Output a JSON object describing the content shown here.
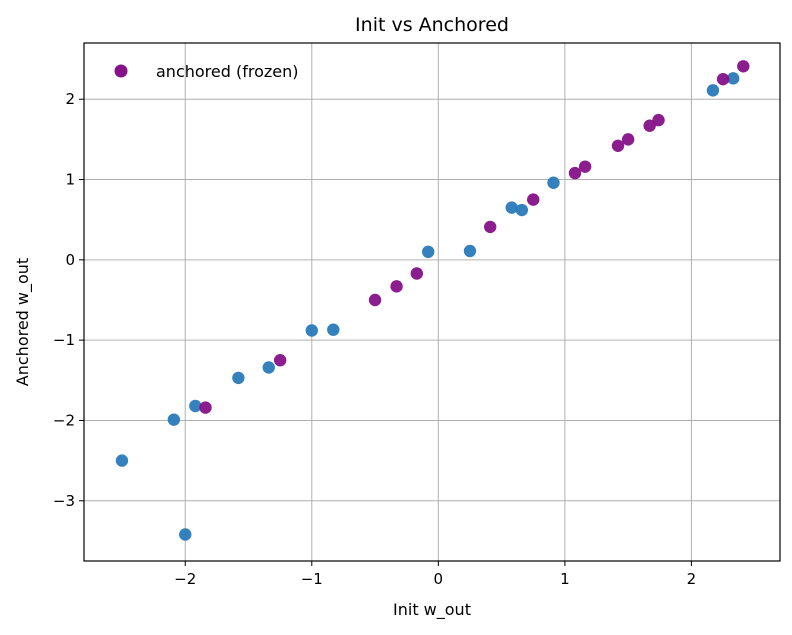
{
  "chart_data": {
    "type": "scatter",
    "title": "Init vs Anchored",
    "xlabel": "Init w_out",
    "ylabel": "Anchored w_out",
    "xlim": [
      -2.8,
      2.7
    ],
    "ylim": [
      -3.75,
      2.7
    ],
    "xticks": [
      -2,
      -1,
      0,
      1,
      2
    ],
    "yticks": [
      -3,
      -2,
      -1,
      0,
      1,
      2
    ],
    "xtick_labels": [
      "−2",
      "−1",
      "0",
      "1",
      "2"
    ],
    "ytick_labels": [
      "−3",
      "−2",
      "−1",
      "0",
      "1",
      "2"
    ],
    "grid": true,
    "legend": {
      "placement": "top-left",
      "entries": [
        "anchored (frozen)"
      ]
    },
    "series": [
      {
        "color": "#2a7ab9",
        "points": [
          [
            -2.5,
            -2.5
          ],
          [
            -2.09,
            -1.99
          ],
          [
            -2.0,
            -3.42
          ],
          [
            -1.92,
            -1.82
          ],
          [
            -1.58,
            -1.47
          ],
          [
            -1.34,
            -1.34
          ],
          [
            -1.0,
            -0.88
          ],
          [
            -0.83,
            -0.87
          ],
          [
            -0.08,
            0.1
          ],
          [
            0.25,
            0.11
          ],
          [
            0.58,
            0.65
          ],
          [
            0.66,
            0.62
          ],
          [
            0.91,
            0.96
          ],
          [
            2.17,
            2.11
          ],
          [
            2.33,
            2.26
          ]
        ]
      },
      {
        "name": "anchored (frozen)",
        "color": "#861188",
        "points": [
          [
            -1.84,
            -1.84
          ],
          [
            -1.25,
            -1.25
          ],
          [
            -0.5,
            -0.5
          ],
          [
            -0.33,
            -0.33
          ],
          [
            -0.17,
            -0.17
          ],
          [
            0.41,
            0.41
          ],
          [
            0.75,
            0.75
          ],
          [
            1.08,
            1.08
          ],
          [
            1.16,
            1.16
          ],
          [
            1.42,
            1.42
          ],
          [
            1.5,
            1.5
          ],
          [
            1.67,
            1.67
          ],
          [
            1.74,
            1.74
          ],
          [
            2.25,
            2.25
          ],
          [
            2.41,
            2.41
          ]
        ]
      }
    ]
  }
}
